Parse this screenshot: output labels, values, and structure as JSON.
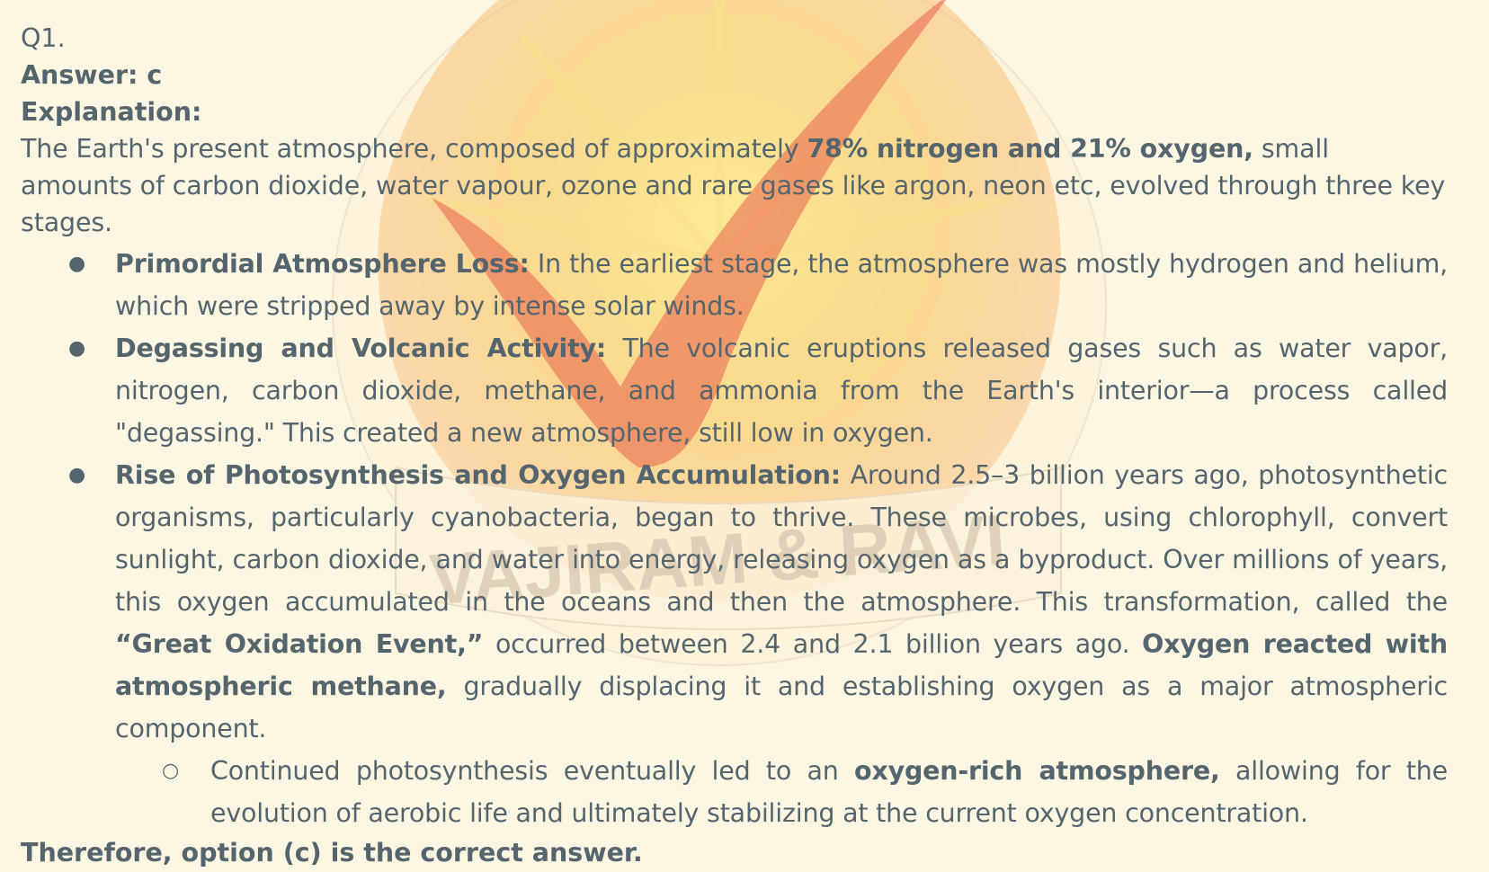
{
  "question_label": "Q1.",
  "answer": "Answer: c",
  "explanation_heading": "Explanation:",
  "intro": {
    "t1": "The Earth's present atmosphere, composed of approximately ",
    "b1": "78% nitrogen and 21% oxygen,",
    "t2": " small amounts of carbon dioxide, water vapour, ozone and rare gases like argon, neon etc, evolved through three key stages."
  },
  "stages": [
    {
      "title": "Primordial Atmosphere Loss:",
      "text": " In the earliest stage, the atmosphere was mostly hydrogen and helium, which were stripped away by intense solar winds."
    },
    {
      "title": "Degassing and Volcanic Activity:",
      "text": " The volcanic eruptions released gases such as water vapor, nitrogen, carbon dioxide, methane, and ammonia from the Earth's interior—a process called \"degassing.\" This created a new atmosphere, still low in oxygen."
    },
    {
      "title": "Rise of Photosynthesis and Oxygen Accumulation:",
      "t1": " Around 2.5–3 billion years ago, photosynthetic organisms, particularly cyanobacteria, began to thrive. These microbes, using chlorophyll, convert sunlight, carbon dioxide, and water into energy, releasing oxygen as a byproduct. Over millions of years, this oxygen accumulated in the oceans and then the atmosphere. This transformation, called the ",
      "b1": "“Great Oxidation Event,”",
      "t2": " occurred between 2.4 and 2.1 billion years ago. ",
      "b2": "Oxygen reacted with atmospheric methane,",
      "t3": " gradually displacing it and establishing oxygen as a major atmospheric component."
    }
  ],
  "sub_point": {
    "t1": "Continued photosynthesis eventually led to an ",
    "b1": "oxygen-rich atmosphere,",
    "t2": " allowing for the evolution of aerobic life and ultimately stabilizing at the current oxygen concentration."
  },
  "conclusion": "Therefore, option (c) is the correct answer.",
  "bullets": {
    "main": "●",
    "sub": "○"
  },
  "watermark": {
    "text": "VAJIRAM & RAVI",
    "sun_color": "#f8c860",
    "swoosh_color": "#e8604a",
    "text_color": "#c9b8a0"
  },
  "colors": {
    "text": "#55656e",
    "background": "#fdf6e3"
  }
}
